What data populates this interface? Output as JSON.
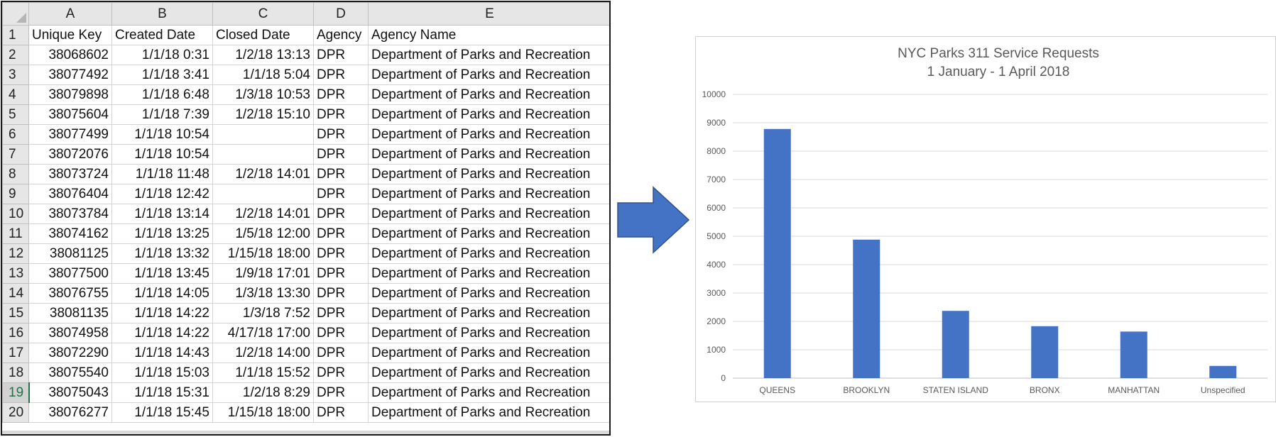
{
  "spreadsheet": {
    "column_letters": [
      "A",
      "B",
      "C",
      "D",
      "E"
    ],
    "header_row": {
      "row_number": "1",
      "cells": [
        "Unique Key",
        "Created Date",
        "Closed Date",
        "Agency",
        "Agency Name"
      ]
    },
    "rows": [
      {
        "n": "2",
        "key": "38068602",
        "created": "1/1/18 0:31",
        "closed": "1/2/18 13:13",
        "agency": "DPR",
        "name": "Department of Parks and Recreation"
      },
      {
        "n": "3",
        "key": "38077492",
        "created": "1/1/18 3:41",
        "closed": "1/1/18 5:04",
        "agency": "DPR",
        "name": "Department of Parks and Recreation"
      },
      {
        "n": "4",
        "key": "38079898",
        "created": "1/1/18 6:48",
        "closed": "1/3/18 10:53",
        "agency": "DPR",
        "name": "Department of Parks and Recreation"
      },
      {
        "n": "5",
        "key": "38075604",
        "created": "1/1/18 7:39",
        "closed": "1/2/18 15:10",
        "agency": "DPR",
        "name": "Department of Parks and Recreation"
      },
      {
        "n": "6",
        "key": "38077499",
        "created": "1/1/18 10:54",
        "closed": "",
        "agency": "DPR",
        "name": "Department of Parks and Recreation"
      },
      {
        "n": "7",
        "key": "38072076",
        "created": "1/1/18 10:54",
        "closed": "",
        "agency": "DPR",
        "name": "Department of Parks and Recreation"
      },
      {
        "n": "8",
        "key": "38073724",
        "created": "1/1/18 11:48",
        "closed": "1/2/18 14:01",
        "agency": "DPR",
        "name": "Department of Parks and Recreation"
      },
      {
        "n": "9",
        "key": "38076404",
        "created": "1/1/18 12:42",
        "closed": "",
        "agency": "DPR",
        "name": "Department of Parks and Recreation"
      },
      {
        "n": "10",
        "key": "38073784",
        "created": "1/1/18 13:14",
        "closed": "1/2/18 14:01",
        "agency": "DPR",
        "name": "Department of Parks and Recreation"
      },
      {
        "n": "11",
        "key": "38074162",
        "created": "1/1/18 13:25",
        "closed": "1/5/18 12:00",
        "agency": "DPR",
        "name": "Department of Parks and Recreation"
      },
      {
        "n": "12",
        "key": "38081125",
        "created": "1/1/18 13:32",
        "closed": "1/15/18 18:00",
        "agency": "DPR",
        "name": "Department of Parks and Recreation"
      },
      {
        "n": "13",
        "key": "38077500",
        "created": "1/1/18 13:45",
        "closed": "1/9/18 17:01",
        "agency": "DPR",
        "name": "Department of Parks and Recreation"
      },
      {
        "n": "14",
        "key": "38076755",
        "created": "1/1/18 14:05",
        "closed": "1/3/18 13:30",
        "agency": "DPR",
        "name": "Department of Parks and Recreation"
      },
      {
        "n": "15",
        "key": "38081135",
        "created": "1/1/18 14:22",
        "closed": "1/3/18 7:52",
        "agency": "DPR",
        "name": "Department of Parks and Recreation"
      },
      {
        "n": "16",
        "key": "38074958",
        "created": "1/1/18 14:22",
        "closed": "4/17/18 17:00",
        "agency": "DPR",
        "name": "Department of Parks and Recreation"
      },
      {
        "n": "17",
        "key": "38072290",
        "created": "1/1/18 14:43",
        "closed": "1/2/18 14:00",
        "agency": "DPR",
        "name": "Department of Parks and Recreation"
      },
      {
        "n": "18",
        "key": "38075540",
        "created": "1/1/18 15:03",
        "closed": "1/1/18 15:52",
        "agency": "DPR",
        "name": "Department of Parks and Recreation"
      },
      {
        "n": "19",
        "key": "38075043",
        "created": "1/1/18 15:31",
        "closed": "1/2/18 8:29",
        "agency": "DPR",
        "name": "Department of Parks and Recreation"
      },
      {
        "n": "20",
        "key": "38076277",
        "created": "1/1/18 15:45",
        "closed": "1/15/18 18:00",
        "agency": "DPR",
        "name": "Department of Parks and Recreation"
      }
    ],
    "active_row": "19",
    "active_row_color": "#217346"
  },
  "arrow": {
    "icon": "right-arrow-icon",
    "fill": "#4472c4",
    "stroke": "#2f528f"
  },
  "chart_data": {
    "type": "bar",
    "title": "NYC Parks 311 Service Requests",
    "subtitle": "1 January - 1 April 2018",
    "categories": [
      "QUEENS",
      "BROOKLYN",
      "STATEN ISLAND",
      "BRONX",
      "MANHATTAN",
      "Unspecified"
    ],
    "values": [
      8780,
      4880,
      2370,
      1830,
      1640,
      430
    ],
    "ylim": [
      0,
      10000
    ],
    "yticks": [
      "0",
      "1000",
      "2000",
      "3000",
      "4000",
      "5000",
      "6000",
      "7000",
      "8000",
      "9000",
      "10000"
    ],
    "grid": true,
    "legend": "none",
    "bar_color": "#4472c4",
    "xlabel": "",
    "ylabel": ""
  }
}
